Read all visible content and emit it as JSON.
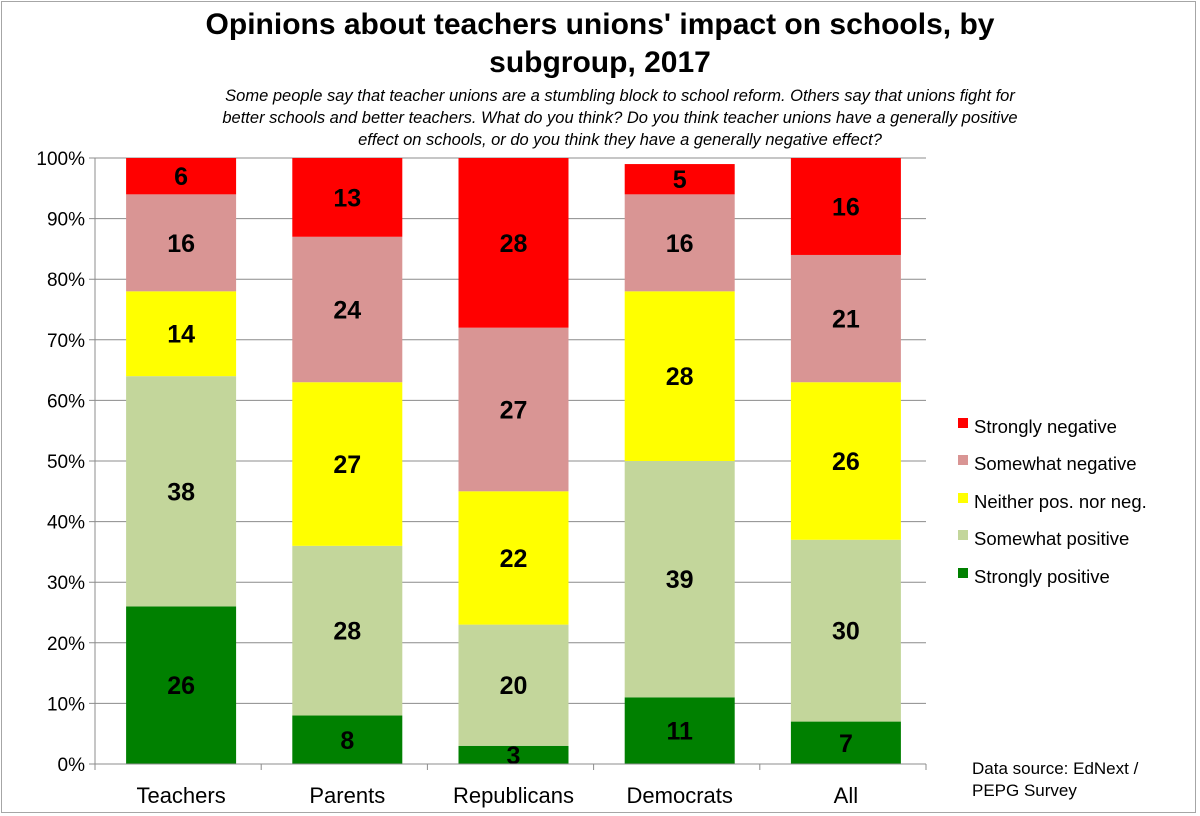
{
  "chart_data": {
    "type": "bar",
    "stacked": true,
    "title": "Opinions about teachers unions' impact on schools, by subgroup, 2017",
    "title_lines": [
      "Opinions about teachers unions' impact on schools, by",
      "subgroup, 2017"
    ],
    "subtitle_lines": [
      "Some people say that teacher unions are a stumbling block to school reform. Others say that unions fight for",
      "better schools and better teachers. What do you think? Do you think teacher unions have a generally positive",
      "effect on schools, or do you think they have a generally negative effect?"
    ],
    "categories": [
      "Teachers",
      "Parents",
      "Republicans",
      "Democrats",
      "All"
    ],
    "series": [
      {
        "name": "Strongly positive",
        "color": "#008000",
        "values": [
          26,
          8,
          3,
          11,
          7
        ]
      },
      {
        "name": "Somewhat positive",
        "color": "#c3d69b",
        "values": [
          38,
          28,
          20,
          39,
          30
        ]
      },
      {
        "name": "Neither pos. nor neg.",
        "color": "#ffff00",
        "values": [
          14,
          27,
          22,
          28,
          26
        ]
      },
      {
        "name": "Somewhat negative",
        "color": "#d99594",
        "values": [
          16,
          24,
          27,
          16,
          21
        ]
      },
      {
        "name": "Strongly negative",
        "color": "#ff0000",
        "values": [
          6,
          13,
          28,
          5,
          16
        ]
      }
    ],
    "legend_order": [
      "Strongly negative",
      "Somewhat negative",
      "Neither pos. nor neg.",
      "Somewhat positive",
      "Strongly positive"
    ],
    "yticks": [
      "0%",
      "10%",
      "20%",
      "30%",
      "40%",
      "50%",
      "60%",
      "70%",
      "80%",
      "90%",
      "100%"
    ],
    "ylim": [
      0,
      100
    ],
    "xlabel": "",
    "ylabel": "",
    "grid": true,
    "legend_position": "right",
    "source_lines": [
      "Data source: EdNext /",
      "PEPG Survey"
    ]
  }
}
